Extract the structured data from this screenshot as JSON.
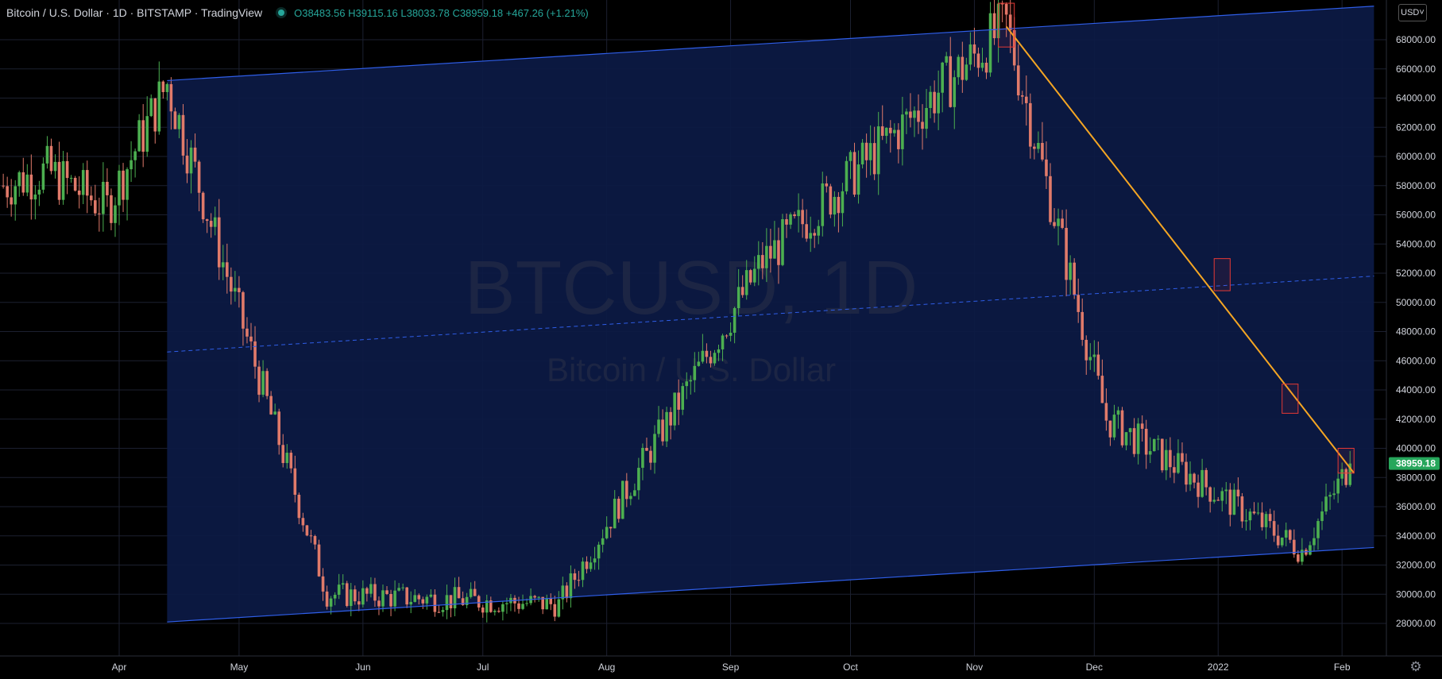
{
  "header": {
    "symbol": "Bitcoin / U.S. Dollar · 1D · BITSTAMP · TradingView",
    "open": "O38483.56",
    "high": "H39115.16",
    "low": "L38033.78",
    "close": "C38959.18",
    "change": "+467.26 (+1.21%)"
  },
  "currency_button": "USD",
  "watermark": {
    "title": "BTCUSD, 1D",
    "subtitle": "Bitcoin / U.S. Dollar"
  },
  "colors": {
    "up": "#4caf50",
    "down": "#e07a6a",
    "channel_line": "#2f5ee8",
    "channel_fill": "#0c1a45",
    "trendline": "#f5a623",
    "box": "#e53935",
    "last_price_bg": "#26a65b"
  },
  "chart_data": {
    "type": "candlestick",
    "title": "Bitcoin / U.S. Dollar · 1D · BITSTAMP",
    "ylim": [
      27000,
      71000
    ],
    "y_ticks": [
      28000,
      30000,
      32000,
      34000,
      36000,
      38000,
      40000,
      42000,
      44000,
      46000,
      48000,
      50000,
      52000,
      54000,
      56000,
      58000,
      60000,
      62000,
      64000,
      66000,
      68000
    ],
    "y_tick_labels": [
      "28000.00",
      "30000.00",
      "32000.00",
      "34000.00",
      "36000.00",
      "38000.00",
      "40000.00",
      "42000.00",
      "44000.00",
      "46000.00",
      "48000.00",
      "50000.00",
      "52000.00",
      "54000.00",
      "56000.00",
      "58000.00",
      "60000.00",
      "62000.00",
      "64000.00",
      "66000.00",
      "68000.00"
    ],
    "x_ticks": [
      {
        "label": "Apr",
        "day": 0
      },
      {
        "label": "May",
        "day": 30
      },
      {
        "label": "Jun",
        "day": 61
      },
      {
        "label": "Jul",
        "day": 91
      },
      {
        "label": "Aug",
        "day": 122
      },
      {
        "label": "Sep",
        "day": 153
      },
      {
        "label": "Oct",
        "day": 183
      },
      {
        "label": "Nov",
        "day": 214
      },
      {
        "label": "Dec",
        "day": 244
      },
      {
        "label": "2022",
        "day": 275
      },
      {
        "label": "Feb",
        "day": 306
      }
    ],
    "last_price": "38959.18",
    "last_price_value": 38959.18,
    "key_points": [
      {
        "day": 12,
        "value": 65000,
        "note": "mid-April high"
      },
      {
        "day": 52,
        "value": 30000,
        "note": "May low"
      },
      {
        "day": 110,
        "value": 29300,
        "note": "July low"
      },
      {
        "day": 161,
        "value": 52800,
        "note": "Sep high"
      },
      {
        "day": 222,
        "value": 69000,
        "note": "Nov all-time high"
      },
      {
        "day": 247,
        "value": 42000,
        "note": "Dec wick low"
      },
      {
        "day": 296,
        "value": 33000,
        "note": "Jan low"
      },
      {
        "day": 308,
        "value": 38959.18,
        "note": "last close"
      }
    ],
    "ascending_channel": {
      "upper": [
        [
          12,
          65200
        ],
        [
          314,
          70300
        ]
      ],
      "middle": [
        [
          12,
          46600
        ],
        [
          314,
          51800
        ]
      ],
      "lower": [
        [
          12,
          28100
        ],
        [
          314,
          33200
        ]
      ]
    },
    "descending_trendline": [
      [
        222,
        68900
      ],
      [
        309,
        38300
      ]
    ],
    "touch_boxes": [
      {
        "day_from": 220,
        "day_to": 224,
        "value_from": 67500,
        "value_to": 70500
      },
      {
        "day_from": 274,
        "day_to": 278,
        "value_from": 50800,
        "value_to": 53000
      },
      {
        "day_from": 291,
        "day_to": 295,
        "value_from": 42400,
        "value_to": 44400
      },
      {
        "day_from": 305,
        "day_to": 309,
        "value_from": 38300,
        "value_to": 40000
      }
    ]
  }
}
